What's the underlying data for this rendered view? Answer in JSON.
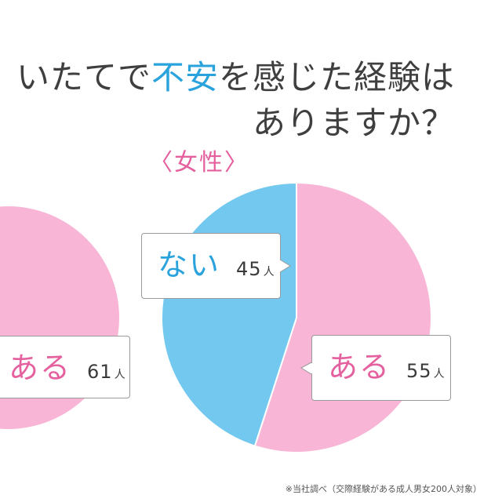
{
  "title": {
    "line1_part1": "いたてで",
    "line1_highlight": "不安",
    "line1_part2": "を感じた経験は",
    "line2": "ありますか？"
  },
  "section_label": "〈女性〉",
  "chart_data": [
    {
      "type": "pie",
      "title": "",
      "categories": [
        "ある"
      ],
      "values": [
        61
      ],
      "unit": "人",
      "colors": [
        "#f8b5d5"
      ]
    },
    {
      "type": "pie",
      "title": "〈女性〉",
      "categories": [
        "ある",
        "ない"
      ],
      "values": [
        55,
        45
      ],
      "unit": "人",
      "colors": [
        "#f8b5d5",
        "#72c8ee"
      ]
    }
  ],
  "labels": {
    "left_aru": {
      "word": "ある",
      "num": "61",
      "unit": "人"
    },
    "right_nai": {
      "word": "ない",
      "num": "45",
      "unit": "人"
    },
    "right_aru": {
      "word": "ある",
      "num": "55",
      "unit": "人"
    }
  },
  "colors": {
    "pink": "#f8b5d5",
    "blue": "#72c8ee",
    "pink_text": "#e4609e",
    "blue_text": "#2aa3dd"
  },
  "footnote": "※当社調べ（交際経験がある成人男女200人対象）"
}
